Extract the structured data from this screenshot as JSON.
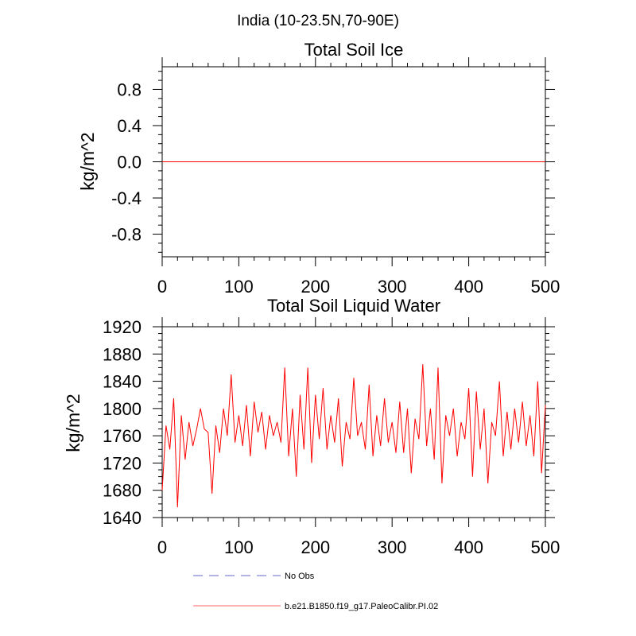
{
  "figure": {
    "suptitle": "India (10-23.5N,70-90E)"
  },
  "colors": {
    "model_line": "#ff0000",
    "obs_line": "#9999dd",
    "axis": "#000000"
  },
  "chart_data": [
    {
      "type": "line",
      "title": "Total Soil Ice",
      "ylabel": "kg/m^2",
      "xlabel": "",
      "xlim": [
        0,
        500
      ],
      "ylim": [
        -1.05,
        1.05
      ],
      "xticks": [
        0,
        100,
        200,
        300,
        400,
        500
      ],
      "xtick_labels": [
        "0",
        "100",
        "200",
        "300",
        "400",
        "500"
      ],
      "yticks": [
        -0.8,
        -0.4,
        0.0,
        0.4,
        0.8
      ],
      "ytick_labels": [
        "-0.8",
        "-0.4",
        "0.0",
        "0.4",
        "0.8"
      ],
      "series": [
        {
          "name": "b.e21.B1850.f19_g17.PaleoCalibr.PI.02",
          "x_start": 0,
          "x_end": 500,
          "constant_value": 0.0
        }
      ]
    },
    {
      "type": "line",
      "title": "Total Soil Liquid Water",
      "ylabel": "kg/m^2",
      "xlabel": "",
      "xlim": [
        0,
        500
      ],
      "ylim": [
        1640,
        1920
      ],
      "xticks": [
        0,
        100,
        200,
        300,
        400,
        500
      ],
      "xtick_labels": [
        "0",
        "100",
        "200",
        "300",
        "400",
        "500"
      ],
      "yticks": [
        1640,
        1680,
        1720,
        1760,
        1800,
        1840,
        1880,
        1920
      ],
      "ytick_labels": [
        "1640",
        "1680",
        "1720",
        "1760",
        "1800",
        "1840",
        "1880",
        "1920"
      ],
      "series": [
        {
          "name": "b.e21.B1850.f19_g17.PaleoCalibr.PI.02",
          "x_start": 0,
          "x_step": 5,
          "values": [
            1680,
            1775,
            1740,
            1815,
            1655,
            1790,
            1725,
            1780,
            1745,
            1770,
            1800,
            1770,
            1765,
            1675,
            1775,
            1735,
            1800,
            1760,
            1850,
            1750,
            1790,
            1745,
            1805,
            1730,
            1810,
            1765,
            1795,
            1740,
            1790,
            1760,
            1780,
            1750,
            1860,
            1730,
            1800,
            1700,
            1820,
            1740,
            1860,
            1720,
            1820,
            1755,
            1830,
            1740,
            1790,
            1750,
            1815,
            1715,
            1780,
            1755,
            1845,
            1760,
            1780,
            1740,
            1835,
            1730,
            1790,
            1745,
            1815,
            1750,
            1780,
            1735,
            1810,
            1735,
            1800,
            1705,
            1785,
            1755,
            1865,
            1745,
            1800,
            1725,
            1860,
            1690,
            1790,
            1760,
            1800,
            1730,
            1780,
            1755,
            1830,
            1700,
            1825,
            1740,
            1800,
            1690,
            1780,
            1760,
            1840,
            1730,
            1795,
            1740,
            1800,
            1750,
            1810,
            1745,
            1790,
            1730,
            1840,
            1705,
            1805
          ]
        }
      ]
    }
  ],
  "legend": {
    "placement": "bottom-center",
    "entries": [
      {
        "label": "No Obs",
        "style": "dashed",
        "color": "#9999dd"
      },
      {
        "label": "b.e21.B1850.f19_g17.PaleoCalibr.PI.02",
        "style": "solid",
        "color": "#ff0000"
      }
    ]
  }
}
